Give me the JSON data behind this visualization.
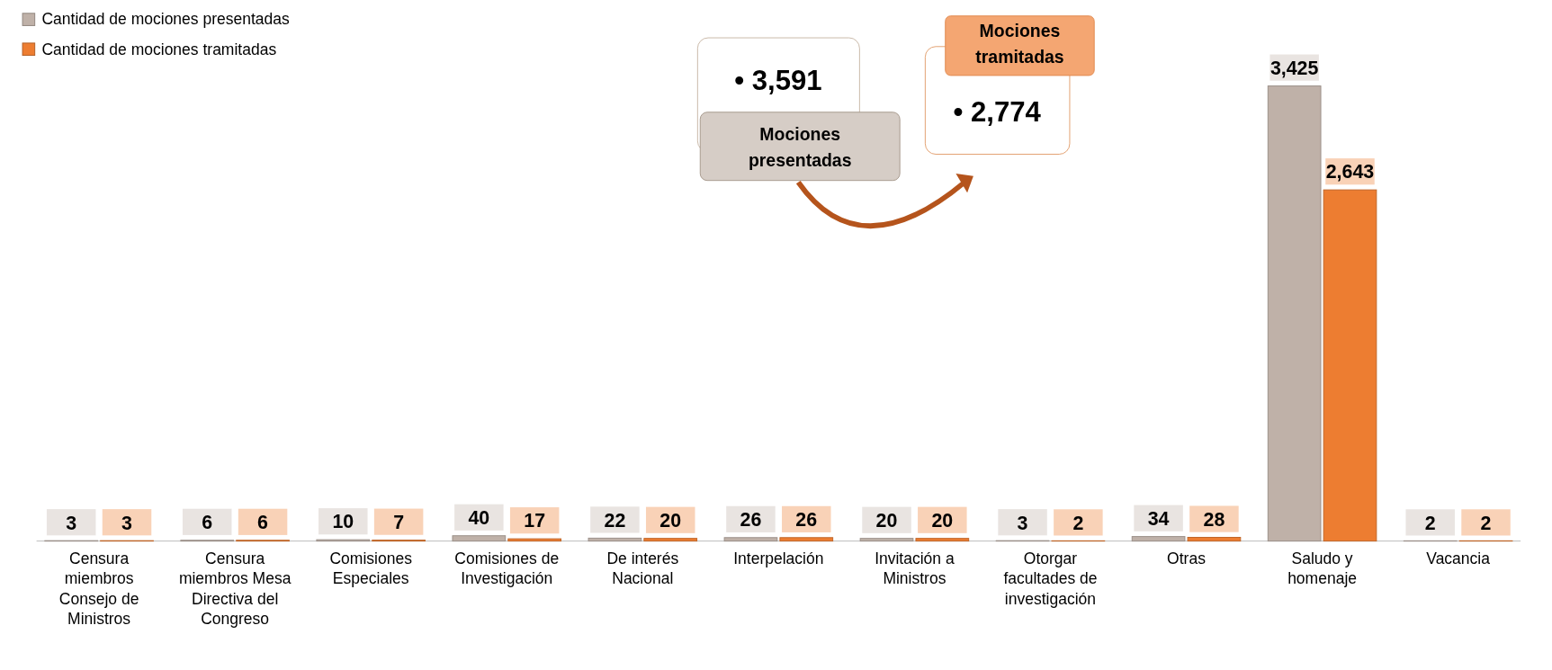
{
  "chart_data": {
    "type": "bar",
    "categories": [
      "Censura miembros Consejo de Ministros",
      "Censura miembros Mesa Directiva del Congreso",
      "Comisiones Especiales",
      "Comisiones de Investigación",
      "De interés Nacional",
      "Interpelación",
      "Invitación a Ministros",
      "Otorgar facultades de investigación",
      "Otras",
      "Saludo y homenaje",
      "Vacancia"
    ],
    "series": [
      {
        "name": "Cantidad de mociones presentadas",
        "color": "#bfb1a8",
        "values": [
          3,
          6,
          10,
          40,
          22,
          26,
          20,
          3,
          34,
          3425,
          2
        ],
        "value_labels": [
          "3",
          "6",
          "10",
          "40",
          "22",
          "26",
          "20",
          "3",
          "34",
          "3,425",
          "2"
        ]
      },
      {
        "name": "Cantidad de mociones tramitadas",
        "color": "#ed7d31",
        "values": [
          3,
          6,
          7,
          17,
          20,
          26,
          20,
          2,
          28,
          2643,
          2
        ],
        "value_labels": [
          "3",
          "6",
          "7",
          "17",
          "20",
          "26",
          "20",
          "2",
          "28",
          "2,643",
          "2"
        ]
      }
    ],
    "legend": "top left",
    "annotations": [
      "• 3,591",
      "Mociones presentadas",
      "• 2,774",
      "Mociones tramitadas"
    ]
  }
}
